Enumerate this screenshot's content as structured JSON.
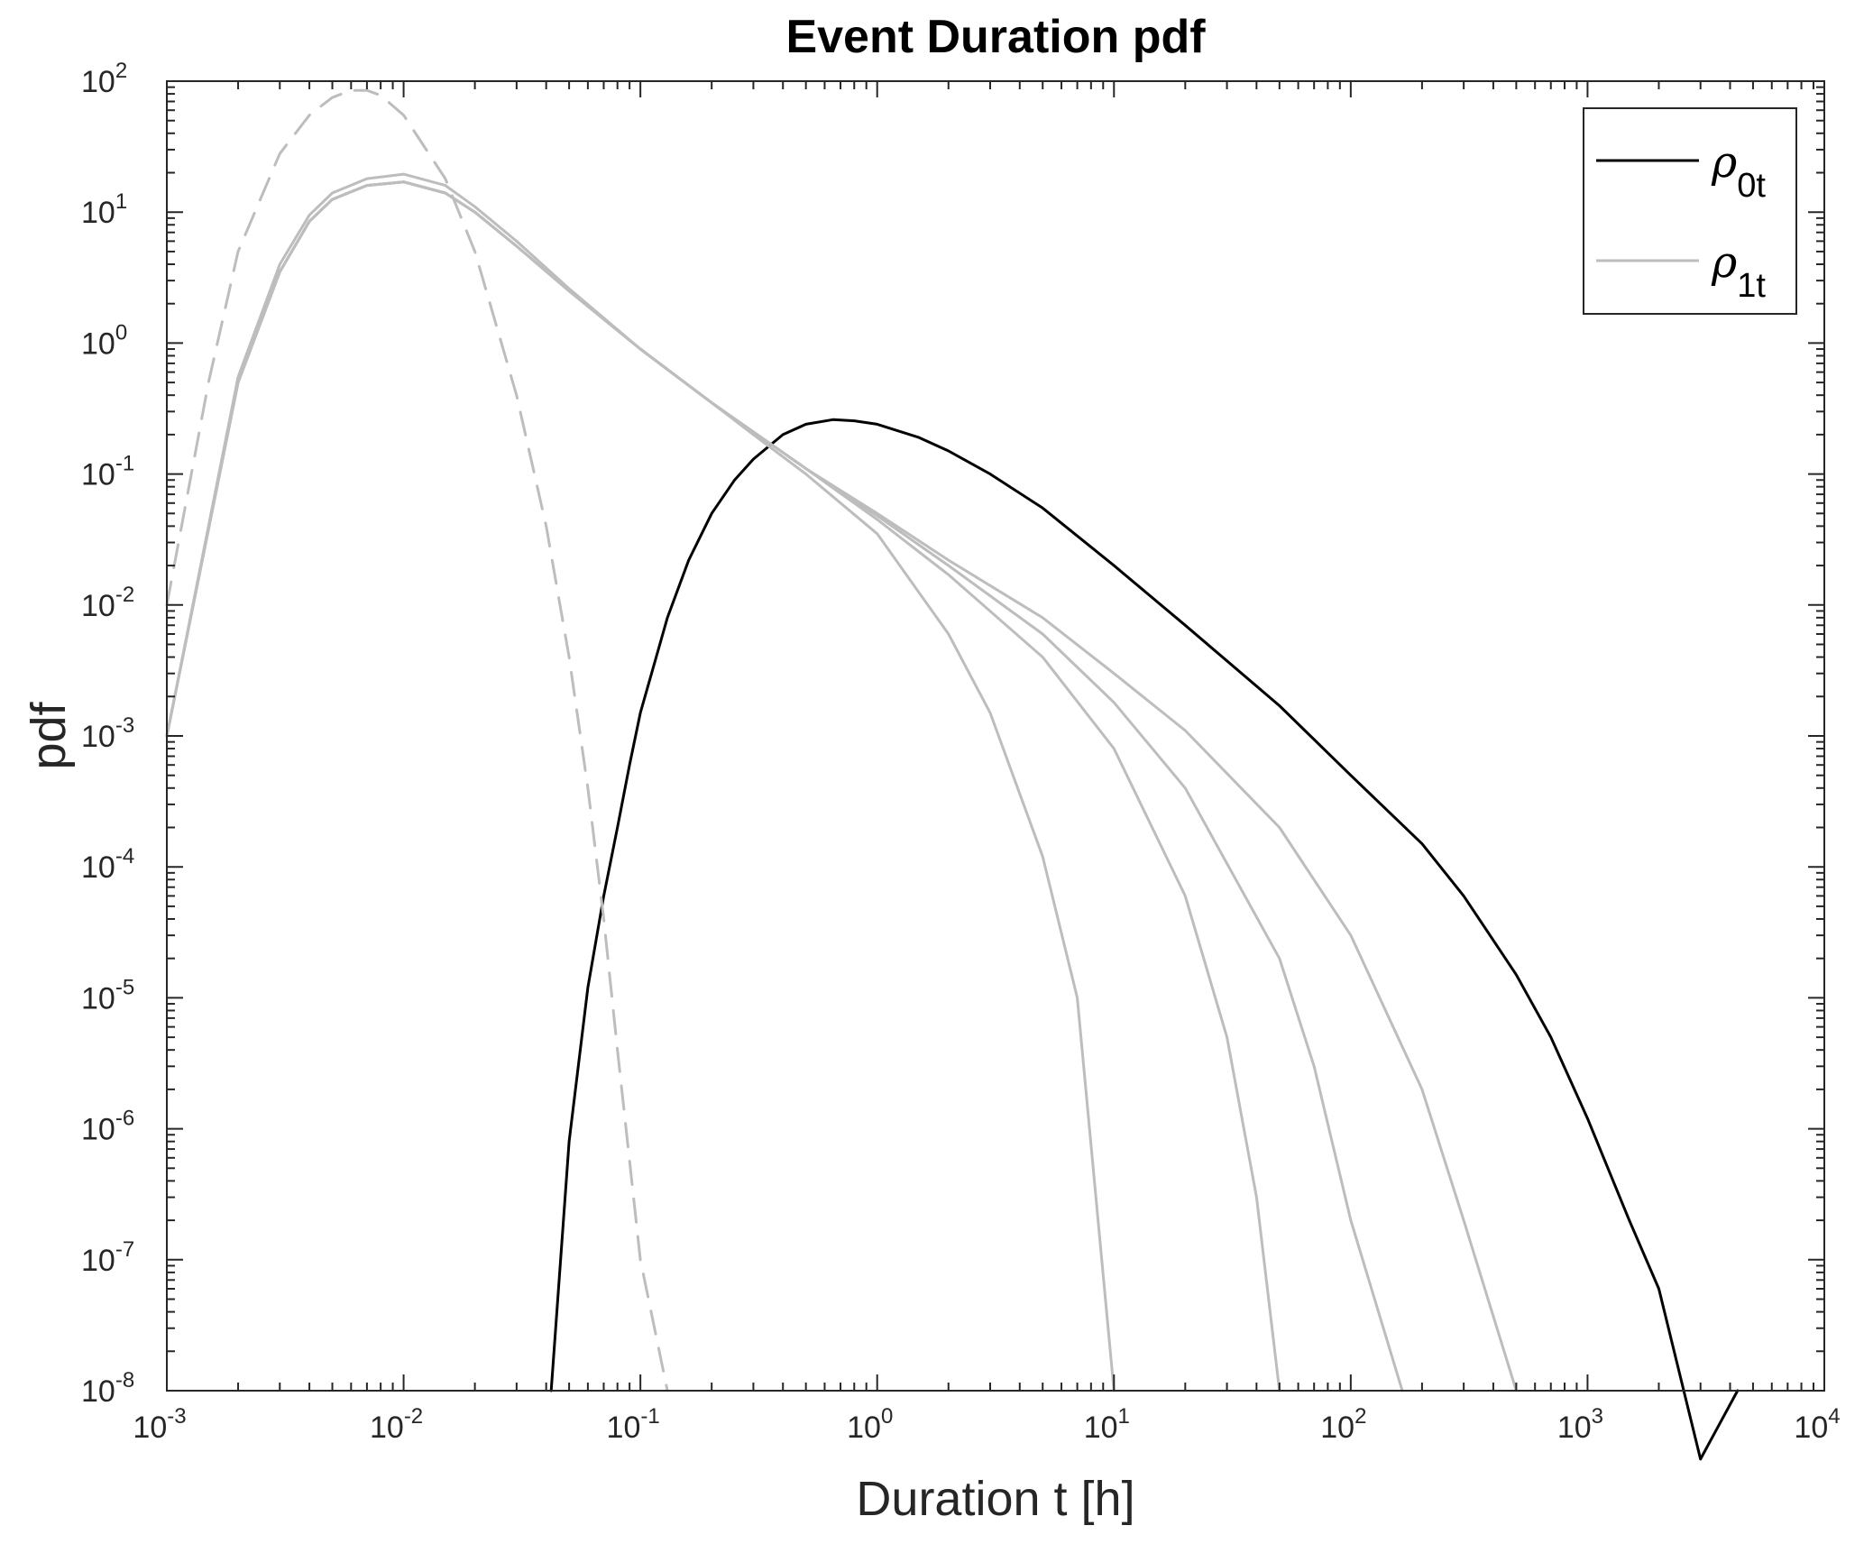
{
  "chart_data": {
    "type": "line",
    "title": "Event Duration pdf",
    "xlabel": "Duration t [h]",
    "ylabel": "pdf",
    "xscale": "log",
    "yscale": "log",
    "xlim": [
      0.001,
      10000
    ],
    "ylim": [
      1e-08,
      100
    ],
    "grid": false,
    "legend_position": "top-right",
    "x_ticks": [
      {
        "base": "10",
        "exp": "-3",
        "value": 0.001
      },
      {
        "base": "10",
        "exp": "-2",
        "value": 0.01
      },
      {
        "base": "10",
        "exp": "-1",
        "value": 0.1
      },
      {
        "base": "10",
        "exp": "0",
        "value": 1
      },
      {
        "base": "10",
        "exp": "1",
        "value": 10
      },
      {
        "base": "10",
        "exp": "2",
        "value": 100
      },
      {
        "base": "10",
        "exp": "3",
        "value": 1000
      },
      {
        "base": "10",
        "exp": "4",
        "value": 10000
      }
    ],
    "y_ticks": [
      {
        "base": "10",
        "exp": "2",
        "value": 100
      },
      {
        "base": "10",
        "exp": "1",
        "value": 10
      },
      {
        "base": "10",
        "exp": "0",
        "value": 1
      },
      {
        "base": "10",
        "exp": "-1",
        "value": 0.1
      },
      {
        "base": "10",
        "exp": "-2",
        "value": 0.01
      },
      {
        "base": "10",
        "exp": "-3",
        "value": 0.001
      },
      {
        "base": "10",
        "exp": "-4",
        "value": 0.0001
      },
      {
        "base": "10",
        "exp": "-5",
        "value": 1e-05
      },
      {
        "base": "10",
        "exp": "-6",
        "value": 1e-06
      },
      {
        "base": "10",
        "exp": "-7",
        "value": 1e-07
      },
      {
        "base": "10",
        "exp": "-8",
        "value": 1e-08
      }
    ],
    "legend": [
      {
        "symbol": "ρ",
        "subscript": "0t",
        "color": "#000000"
      },
      {
        "symbol": "ρ",
        "subscript": "1t",
        "color": "#bdbdbd"
      }
    ],
    "series": [
      {
        "legend_ref": "0t",
        "color": "#000000",
        "style": "solid",
        "points": [
          [
            0.042,
            1e-08
          ],
          [
            0.05,
            8e-07
          ],
          [
            0.06,
            1.2e-05
          ],
          [
            0.07,
            6e-05
          ],
          [
            0.08,
            0.0002
          ],
          [
            0.09,
            0.0006
          ],
          [
            0.1,
            0.0015
          ],
          [
            0.13,
            0.008
          ],
          [
            0.16,
            0.022
          ],
          [
            0.2,
            0.05
          ],
          [
            0.25,
            0.09
          ],
          [
            0.3,
            0.13
          ],
          [
            0.4,
            0.2
          ],
          [
            0.5,
            0.24
          ],
          [
            0.65,
            0.26
          ],
          [
            0.8,
            0.255
          ],
          [
            1,
            0.24
          ],
          [
            1.5,
            0.19
          ],
          [
            2,
            0.15
          ],
          [
            3,
            0.1
          ],
          [
            5,
            0.055
          ],
          [
            10,
            0.02
          ],
          [
            20,
            0.007
          ],
          [
            50,
            0.0017
          ],
          [
            100,
            0.0005
          ],
          [
            200,
            0.00015
          ],
          [
            300,
            6e-05
          ],
          [
            500,
            1.5e-05
          ],
          [
            700,
            5e-06
          ],
          [
            1000,
            1.2e-06
          ],
          [
            1500,
            2e-07
          ],
          [
            2000,
            6e-08
          ],
          [
            3000,
            3e-09
          ],
          [
            4300,
            1e-08
          ]
        ]
      },
      {
        "legend_ref": "1t",
        "color": "#bdbdbd",
        "style": "solid",
        "points": [
          [
            0.001,
            0.001
          ],
          [
            0.002,
            0.5
          ],
          [
            0.003,
            3.5
          ],
          [
            0.004,
            8.5
          ],
          [
            0.005,
            12.5
          ],
          [
            0.007,
            16
          ],
          [
            0.01,
            17
          ],
          [
            0.015,
            14
          ],
          [
            0.02,
            10
          ],
          [
            0.03,
            5.5
          ],
          [
            0.05,
            2.5
          ],
          [
            0.1,
            0.9
          ],
          [
            0.2,
            0.35
          ],
          [
            0.3,
            0.2
          ],
          [
            0.5,
            0.1
          ],
          [
            1,
            0.035
          ],
          [
            2,
            0.006
          ],
          [
            3,
            0.0015
          ],
          [
            5,
            0.00012
          ],
          [
            7,
            1e-05
          ],
          [
            10,
            1e-08
          ]
        ]
      },
      {
        "legend_ref": "1t",
        "color": "#bdbdbd",
        "style": "solid",
        "points": [
          [
            0.001,
            0.001
          ],
          [
            0.002,
            0.5
          ],
          [
            0.003,
            3.5
          ],
          [
            0.004,
            8.5
          ],
          [
            0.005,
            12.5
          ],
          [
            0.007,
            16
          ],
          [
            0.01,
            17
          ],
          [
            0.015,
            14
          ],
          [
            0.02,
            10
          ],
          [
            0.03,
            5.5
          ],
          [
            0.05,
            2.5
          ],
          [
            0.1,
            0.9
          ],
          [
            0.2,
            0.35
          ],
          [
            0.5,
            0.11
          ],
          [
            1,
            0.045
          ],
          [
            2,
            0.017
          ],
          [
            5,
            0.004
          ],
          [
            10,
            0.0008
          ],
          [
            20,
            6e-05
          ],
          [
            30,
            5e-06
          ],
          [
            40,
            3e-07
          ],
          [
            50,
            1e-08
          ]
        ]
      },
      {
        "legend_ref": "1t",
        "color": "#bdbdbd",
        "style": "solid",
        "points": [
          [
            0.001,
            0.001
          ],
          [
            0.002,
            0.5
          ],
          [
            0.003,
            3.5
          ],
          [
            0.004,
            8.5
          ],
          [
            0.005,
            12.5
          ],
          [
            0.007,
            16
          ],
          [
            0.01,
            17
          ],
          [
            0.015,
            14
          ],
          [
            0.02,
            10
          ],
          [
            0.03,
            5.5
          ],
          [
            0.05,
            2.5
          ],
          [
            0.1,
            0.9
          ],
          [
            0.2,
            0.35
          ],
          [
            0.5,
            0.11
          ],
          [
            1,
            0.048
          ],
          [
            2,
            0.02
          ],
          [
            5,
            0.006
          ],
          [
            10,
            0.0018
          ],
          [
            20,
            0.0004
          ],
          [
            50,
            2e-05
          ],
          [
            70,
            3e-06
          ],
          [
            100,
            2e-07
          ],
          [
            165,
            1e-08
          ]
        ]
      },
      {
        "legend_ref": "1t",
        "color": "#bdbdbd",
        "style": "solid",
        "points": [
          [
            0.001,
            0.001
          ],
          [
            0.002,
            0.5
          ],
          [
            0.003,
            3.5
          ],
          [
            0.004,
            8.5
          ],
          [
            0.005,
            12.5
          ],
          [
            0.007,
            16
          ],
          [
            0.01,
            17
          ],
          [
            0.015,
            14
          ],
          [
            0.02,
            10
          ],
          [
            0.03,
            5.5
          ],
          [
            0.05,
            2.5
          ],
          [
            0.1,
            0.9
          ],
          [
            0.2,
            0.35
          ],
          [
            0.5,
            0.11
          ],
          [
            1,
            0.05
          ],
          [
            2,
            0.022
          ],
          [
            5,
            0.008
          ],
          [
            10,
            0.003
          ],
          [
            20,
            0.0011
          ],
          [
            50,
            0.0002
          ],
          [
            100,
            3e-05
          ],
          [
            200,
            2e-06
          ],
          [
            300,
            2e-07
          ],
          [
            500,
            1e-08
          ]
        ]
      },
      {
        "legend_ref": "1t",
        "color": "#bdbdbd",
        "style": "solid",
        "points": [
          [
            0.001,
            0.001
          ],
          [
            0.002,
            0.55
          ],
          [
            0.003,
            4
          ],
          [
            0.004,
            9.5
          ],
          [
            0.005,
            14
          ],
          [
            0.007,
            18
          ],
          [
            0.01,
            19.5
          ],
          [
            0.015,
            16
          ],
          [
            0.02,
            11
          ],
          [
            0.03,
            6
          ],
          [
            0.05,
            2.6
          ],
          [
            0.1,
            0.9
          ],
          [
            0.2,
            0.35
          ]
        ]
      },
      {
        "color": "#bdbdbd",
        "style": "dashed",
        "points": [
          [
            0.001,
            0.01
          ],
          [
            0.0015,
            0.5
          ],
          [
            0.002,
            5
          ],
          [
            0.003,
            28
          ],
          [
            0.004,
            55
          ],
          [
            0.005,
            75
          ],
          [
            0.006,
            85
          ],
          [
            0.007,
            85
          ],
          [
            0.008,
            78
          ],
          [
            0.01,
            55
          ],
          [
            0.015,
            18
          ],
          [
            0.02,
            5
          ],
          [
            0.03,
            0.4
          ],
          [
            0.04,
            0.04
          ],
          [
            0.05,
            0.004
          ],
          [
            0.06,
            0.0004
          ],
          [
            0.07,
            4e-05
          ],
          [
            0.08,
            4e-06
          ],
          [
            0.1,
            1e-07
          ],
          [
            0.13,
            1e-08
          ]
        ]
      }
    ]
  }
}
